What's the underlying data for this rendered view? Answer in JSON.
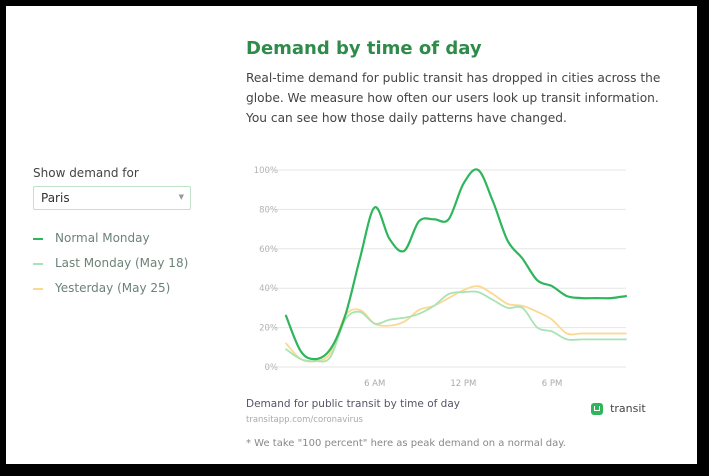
{
  "header": {
    "title": "Demand by time of day",
    "intro": "Real-time demand for public transit has dropped in cities across the globe. We measure how often our users look up transit information. You can see how those daily patterns have changed."
  },
  "controls": {
    "show_label": "Show demand for",
    "city_select": {
      "value": "Paris"
    }
  },
  "legend": {
    "items": [
      {
        "label": "Normal Monday",
        "color": "#2fb55c"
      },
      {
        "label": "Last Monday (May 18)",
        "color": "#a8e3b4"
      },
      {
        "label": "Yesterday (May 25)",
        "color": "#fcd890"
      }
    ]
  },
  "footer": {
    "caption": "Demand for public transit by time of day",
    "source": "transitapp.com/coronavirus",
    "brand": "transit",
    "footnote": "* We take \"100 percent\" here as peak demand on a normal day."
  },
  "chart_data": {
    "type": "line",
    "x": [
      0,
      1,
      2,
      3,
      4,
      5,
      6,
      7,
      8,
      9,
      10,
      11,
      12,
      13,
      14,
      15,
      16,
      17,
      18,
      19,
      20,
      21,
      22,
      23
    ],
    "xticks": [
      {
        "value": 6,
        "label": "6 AM"
      },
      {
        "value": 12,
        "label": "12 PM"
      },
      {
        "value": 18,
        "label": "6 PM"
      }
    ],
    "ylim": [
      0,
      100
    ],
    "yticks": [
      {
        "value": 0,
        "label": "0%"
      },
      {
        "value": 20,
        "label": "20%"
      },
      {
        "value": 40,
        "label": "40%"
      },
      {
        "value": 60,
        "label": "60%"
      },
      {
        "value": 80,
        "label": "80%"
      },
      {
        "value": 100,
        "label": "100%"
      }
    ],
    "grid": true,
    "series": [
      {
        "name": "Normal Monday",
        "color": "#2fb55c",
        "values": [
          26,
          8,
          4,
          9,
          26,
          55,
          81,
          65,
          59,
          74,
          75,
          75,
          93,
          100,
          84,
          64,
          55,
          44,
          41,
          36,
          35,
          35,
          35,
          36
        ]
      },
      {
        "name": "Last Monday (May 18)",
        "color": "#a8e3b4",
        "values": [
          9,
          4,
          3,
          5,
          24,
          28,
          22,
          24,
          25,
          27,
          31,
          37,
          38,
          38,
          34,
          30,
          30,
          20,
          18,
          14,
          14,
          14,
          14,
          14
        ]
      },
      {
        "name": "Yesterday (May 25)",
        "color": "#fcd890",
        "values": [
          12,
          4,
          3,
          7,
          26,
          29,
          22,
          21,
          23,
          29,
          31,
          35,
          39,
          41,
          37,
          32,
          31,
          28,
          24,
          17,
          17,
          17,
          17,
          17
        ]
      }
    ]
  }
}
